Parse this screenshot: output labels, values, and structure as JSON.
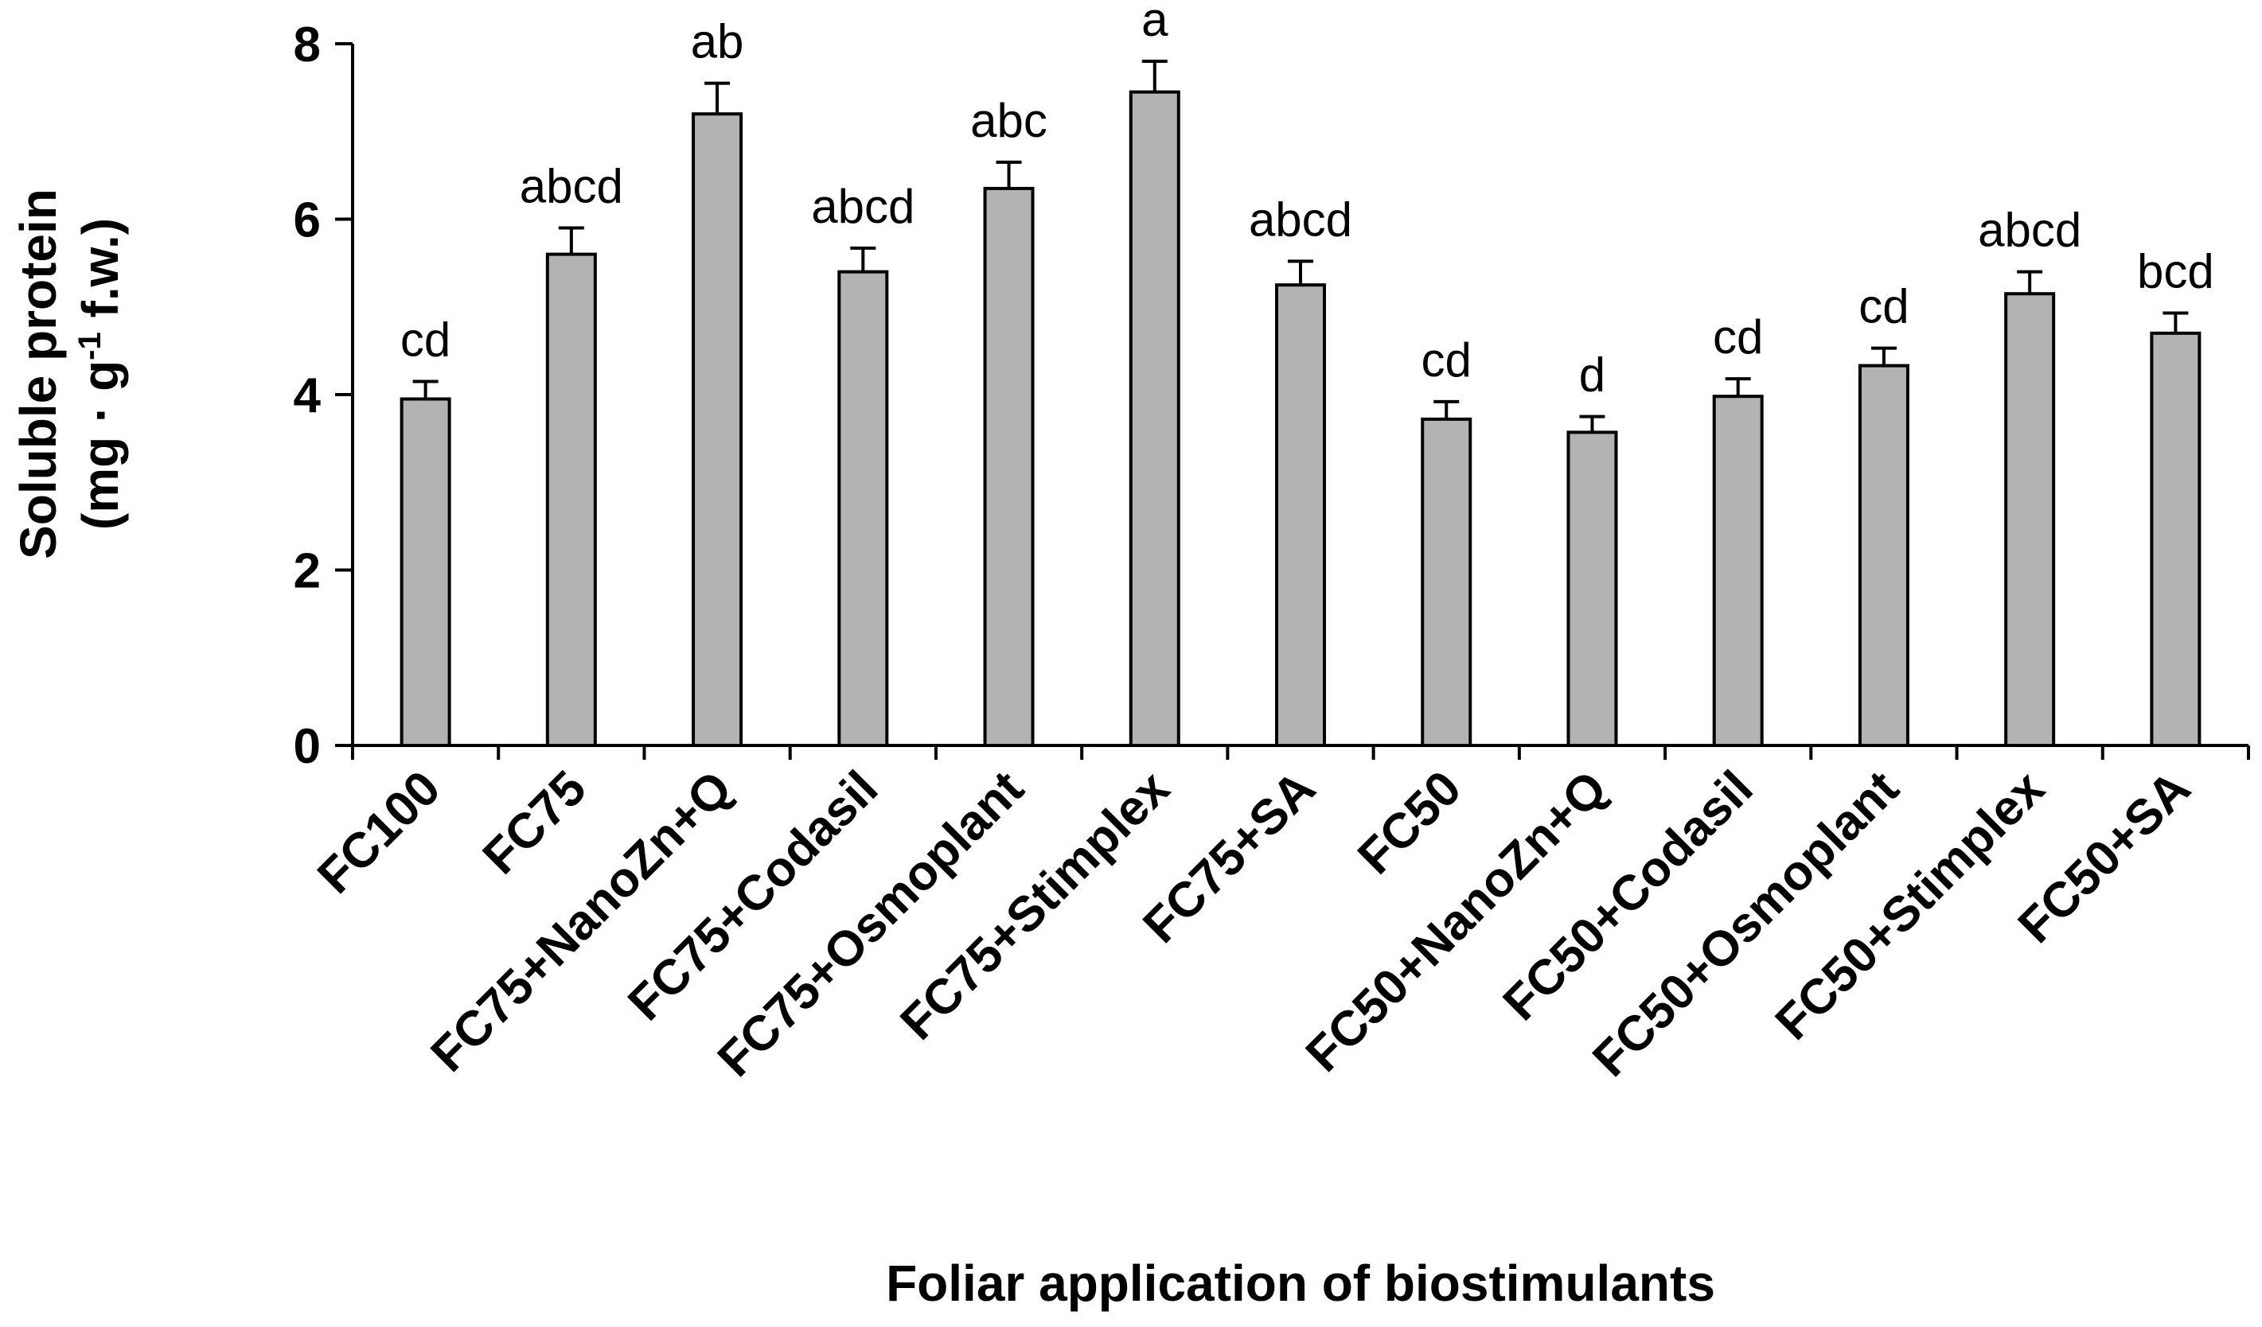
{
  "chart_data": {
    "type": "bar",
    "title": "",
    "xlabel": "Foliar application of biostimulants",
    "ylabel": {
      "line1": "Soluble protein",
      "line2_prefix": "(mg · g",
      "line2_sup": "-1",
      "line2_suffix": " f.w.)"
    },
    "ylim": [
      0,
      8
    ],
    "yticks": [
      0,
      2,
      4,
      6,
      8
    ],
    "grid": false,
    "legend": "none",
    "categories": [
      "FC100",
      "FC75",
      "FC75+NanoZn+Q",
      "FC75+Codasil",
      "FC75+Osmoplant",
      "FC75+Stimplex",
      "FC75+SA",
      "FC50",
      "FC50+NanoZn+Q",
      "FC50+Codasil",
      "FC50+Osmoplant",
      "FC50+Stimplex",
      "FC50+SA"
    ],
    "values": [
      3.95,
      5.6,
      7.2,
      5.4,
      6.35,
      7.45,
      5.25,
      3.72,
      3.57,
      3.98,
      4.33,
      5.15,
      4.7
    ],
    "errors": [
      0.2,
      0.3,
      0.35,
      0.27,
      0.3,
      0.35,
      0.27,
      0.2,
      0.18,
      0.2,
      0.2,
      0.25,
      0.23
    ],
    "letters": [
      "cd",
      "abcd",
      "ab",
      "abcd",
      "abc",
      "a",
      "abcd",
      "cd",
      "d",
      "cd",
      "cd",
      "abcd",
      "bcd"
    ],
    "colors": {
      "bar_fill": "#b3b3b3",
      "bar_stroke": "#000000",
      "axis": "#000000"
    }
  }
}
